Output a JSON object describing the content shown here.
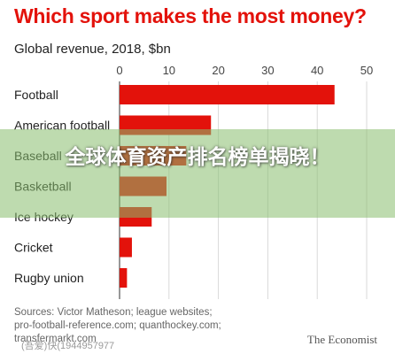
{
  "chart_data": {
    "type": "bar",
    "orientation": "horizontal",
    "title": "Which sport makes the most money?",
    "subtitle": "Global revenue, 2018, $bn",
    "categories": [
      "Football",
      "American football",
      "Baseball",
      "Basketball",
      "Ice hockey",
      "Cricket",
      "Rugby union"
    ],
    "values": [
      43.5,
      18.5,
      13.5,
      9.5,
      6.5,
      2.5,
      1.5
    ],
    "xlim": [
      0,
      50
    ],
    "xticks": [
      0,
      10,
      20,
      30,
      40,
      50
    ],
    "bar_color": "#e3120b",
    "grid": true
  },
  "footer": {
    "sources": [
      "Sources: Victor Matheson; league websites;",
      "pro-football-reference.com; quanthockey.com;",
      "transfermarkt.com"
    ],
    "brand": "The Economist",
    "watermark": "(吾爱)快(1944957977"
  },
  "overlay": {
    "text": "全球体育资产排名榜单揭晓！"
  }
}
